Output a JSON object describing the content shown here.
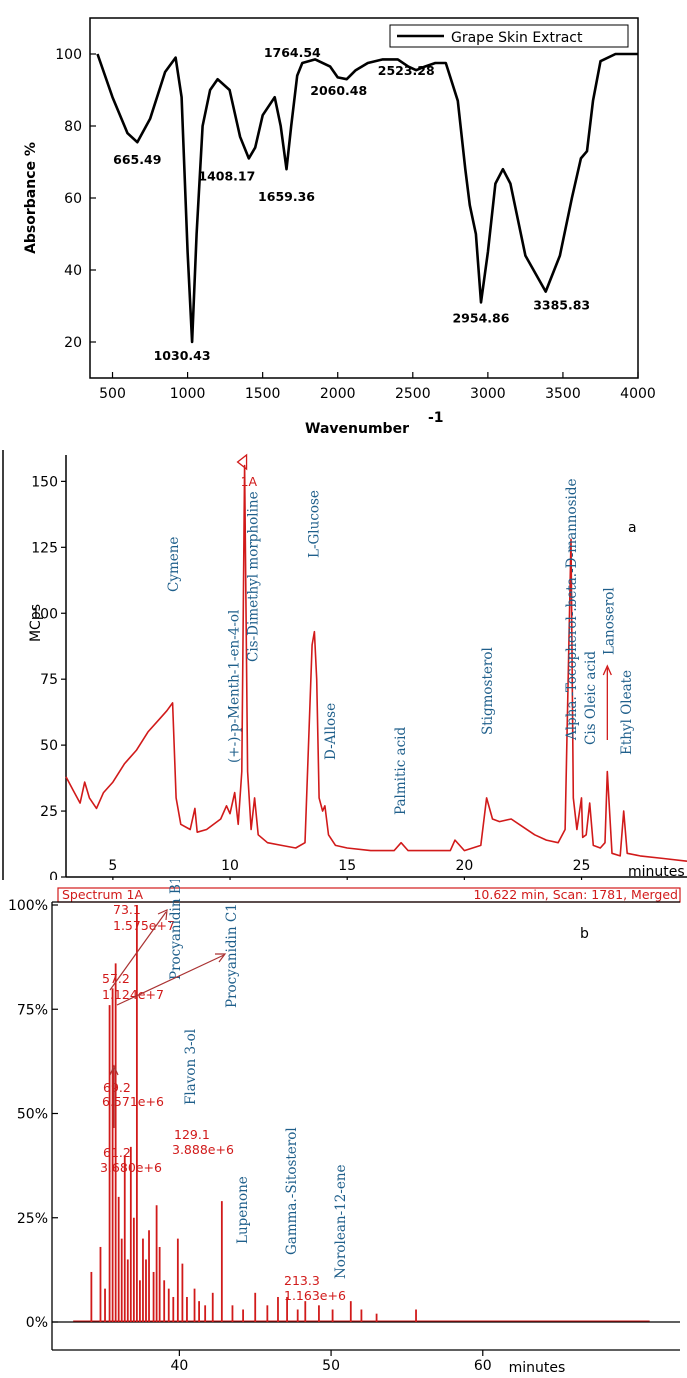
{
  "chart_data": [
    {
      "type": "line",
      "legend": "Grape Skin Extract",
      "legend_position": "top-right",
      "xlabel": "Wavenumber",
      "xlabel_sup": "-1",
      "ylabel": "Absorbance %",
      "xlim": [
        350,
        4000
      ],
      "ylim": [
        10,
        110
      ],
      "xticks": [
        500,
        1000,
        1500,
        2000,
        2500,
        3000,
        3500,
        4000
      ],
      "yticks": [
        20,
        40,
        60,
        80,
        100
      ],
      "x": [
        400,
        500,
        600,
        665,
        750,
        850,
        920,
        960,
        1000,
        1030,
        1060,
        1100,
        1150,
        1200,
        1280,
        1350,
        1408,
        1450,
        1500,
        1580,
        1620,
        1659,
        1690,
        1730,
        1764,
        1850,
        1950,
        2000,
        2060,
        2120,
        2200,
        2300,
        2400,
        2470,
        2523,
        2580,
        2650,
        2720,
        2800,
        2850,
        2880,
        2920,
        2954,
        3000,
        3050,
        3100,
        3150,
        3250,
        3385,
        3480,
        3560,
        3620,
        3660,
        3700,
        3750,
        3850,
        4000
      ],
      "y": [
        100,
        88,
        78,
        75.5,
        82,
        95,
        99,
        88,
        45,
        20,
        50,
        80,
        90,
        93,
        90,
        77,
        71,
        74,
        83,
        88,
        80,
        68,
        80,
        94,
        97.5,
        98.5,
        96.5,
        93.5,
        93,
        95.5,
        97.5,
        98.5,
        98.5,
        96.5,
        95.5,
        96.5,
        97.5,
        97.5,
        87,
        68,
        58,
        50,
        31,
        45,
        64,
        68,
        64,
        44,
        34,
        44,
        60,
        71,
        73,
        87,
        98,
        100,
        100
      ],
      "peaks": [
        {
          "label": "665.49",
          "x": 665,
          "y": 75.5
        },
        {
          "label": "1030.43",
          "x": 1030,
          "y": 20
        },
        {
          "label": "1408.17",
          "x": 1408,
          "y": 71
        },
        {
          "label": "1659.36",
          "x": 1659,
          "y": 68
        },
        {
          "label": "1764.54",
          "x": 1764,
          "y": 97.5
        },
        {
          "label": "2060.48",
          "x": 2060,
          "y": 93
        },
        {
          "label": "2523.28",
          "x": 2523,
          "y": 95.5
        },
        {
          "label": "2954.86",
          "x": 2954,
          "y": 31
        },
        {
          "label": "3385.83",
          "x": 3385,
          "y": 34
        }
      ]
    },
    {
      "type": "line",
      "panel_label": "a",
      "ylabel": "MCps",
      "xlabel": "minutes",
      "xlim": [
        3,
        29.5
      ],
      "ylim": [
        0,
        160
      ],
      "xticks": [
        5,
        10,
        15,
        20,
        25
      ],
      "yticks": [
        0,
        25,
        50,
        75,
        100,
        125,
        150
      ],
      "top_annotation": "1A",
      "x": [
        3,
        3.3,
        3.6,
        3.8,
        4.0,
        4.3,
        4.6,
        5.0,
        5.5,
        6.0,
        6.5,
        7.0,
        7.3,
        7.55,
        7.7,
        7.9,
        8.3,
        8.5,
        8.6,
        9.0,
        9.6,
        9.85,
        10.0,
        10.2,
        10.35,
        10.5,
        10.62,
        10.75,
        10.9,
        11.05,
        11.2,
        11.6,
        12.2,
        12.8,
        13.2,
        13.35,
        13.5,
        13.6,
        13.7,
        13.8,
        13.95,
        14.05,
        14.2,
        14.5,
        15.0,
        16.0,
        17.0,
        17.3,
        17.6,
        18.5,
        19.4,
        19.6,
        20.0,
        20.7,
        20.95,
        21.2,
        21.5,
        22.0,
        22.5,
        23.0,
        23.5,
        24.0,
        24.3,
        24.55,
        24.65,
        24.8,
        25.0,
        25.05,
        25.2,
        25.35,
        25.5,
        25.8,
        26.0,
        26.1,
        26.3,
        26.65,
        26.8,
        26.95,
        27.5,
        28.5,
        29.5
      ],
      "y": [
        38,
        33,
        28,
        36,
        30,
        26,
        32,
        36,
        43,
        48,
        55,
        60,
        63,
        66,
        30,
        20,
        18,
        26,
        17,
        18,
        22,
        27,
        24,
        32,
        20,
        40,
        156,
        40,
        18,
        30,
        16,
        13,
        12,
        11,
        13,
        50,
        88,
        93,
        75,
        30,
        25,
        27,
        16,
        12,
        11,
        10,
        10,
        13,
        10,
        10,
        10,
        14,
        10,
        12,
        30,
        22,
        21,
        22,
        19,
        16,
        14,
        13,
        18,
        128,
        30,
        18,
        30,
        15,
        16,
        28,
        12,
        11,
        13,
        40,
        9,
        8,
        25,
        9,
        8,
        7,
        6
      ],
      "compounds": [
        {
          "label": "Cymene",
          "x": 7.6
        },
        {
          "label": "(+-)-p-Menth-1-en-4-ol",
          "x": 10.2
        },
        {
          "label": "Cis-Dimethyl morpholine",
          "x": 11.0
        },
        {
          "label": "L-Glucose",
          "x": 13.6
        },
        {
          "label": "D-Allose",
          "x": 14.3
        },
        {
          "label": "Palmitic acid",
          "x": 17.3
        },
        {
          "label": "Stigmosterol",
          "x": 21.0
        },
        {
          "label": "Alpha.-Tocopherol-.beta.-D-mannoside",
          "x": 24.6
        },
        {
          "label": "Cis Oleic acid",
          "x": 25.4
        },
        {
          "label": "Lanoserol",
          "x": 26.2
        },
        {
          "label": "Ethyl Oleate",
          "x": 26.95
        }
      ]
    },
    {
      "type": "bar",
      "panel_label": "b",
      "header_left": "Spectrum 1A",
      "header_right": "10.622 min, Scan: 1781, Merged",
      "xlabel": "minutes",
      "xlim": [
        32,
        73
      ],
      "ylim": [
        0,
        100
      ],
      "xticks": [
        40,
        50,
        60
      ],
      "yticks_label": [
        "0%",
        "25%",
        "50%",
        "75%",
        "100%"
      ],
      "yticks": [
        0,
        25,
        50,
        75,
        100
      ],
      "x": [
        34.2,
        34.8,
        35.1,
        35.4,
        35.6,
        35.8,
        36.0,
        36.2,
        36.4,
        36.6,
        36.8,
        37.0,
        37.2,
        37.4,
        37.6,
        37.8,
        38.0,
        38.3,
        38.5,
        38.7,
        39.0,
        39.3,
        39.6,
        39.9,
        40.2,
        40.5,
        41.0,
        41.3,
        41.7,
        42.2,
        42.8,
        43.5,
        44.2,
        45.0,
        45.8,
        46.5,
        47.1,
        47.8,
        48.3,
        49.2,
        50.1,
        51.3,
        52.0,
        53.0,
        55.6
      ],
      "values": [
        12,
        18,
        8,
        76,
        80,
        86,
        30,
        20,
        40,
        15,
        42,
        25,
        100,
        10,
        20,
        15,
        22,
        12,
        28,
        18,
        10,
        8,
        6,
        20,
        14,
        6,
        8,
        5,
        4,
        7,
        29,
        4,
        3,
        7,
        4,
        6,
        6,
        3,
        5,
        4,
        3,
        5,
        3,
        2,
        3
      ],
      "peak_labels": [
        {
          "mz": "73.1",
          "intensity": "1.575e+7"
        },
        {
          "mz": "57.2",
          "intensity": "1.124e+7"
        },
        {
          "mz": "69.2",
          "intensity": "6.571e+6"
        },
        {
          "mz": "61.2",
          "intensity": "3.680e+6"
        },
        {
          "mz": "129.1",
          "intensity": "3.888e+6"
        },
        {
          "mz": "213.3",
          "intensity": "1.163e+6"
        }
      ],
      "compounds": [
        {
          "label": "Procyanidin B1",
          "x": 42.1
        },
        {
          "label": "Procyanidin C1",
          "x": 46.5
        },
        {
          "label": "Flavon 3-ol",
          "x": 43.4
        },
        {
          "label": "Lupenone",
          "x": 47.0
        },
        {
          "label": "Gamma.-Sitosterol",
          "x": 51.5
        },
        {
          "label": "Norolean-12-ene",
          "x": 55.5
        }
      ]
    }
  ]
}
